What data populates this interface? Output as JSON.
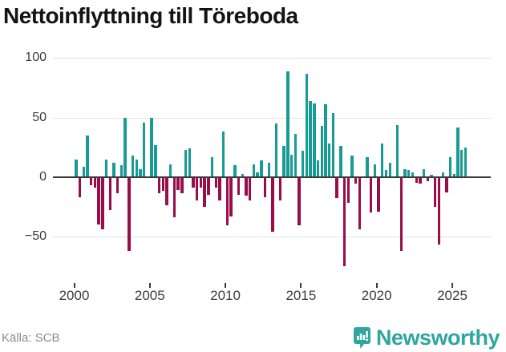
{
  "title": "Nettoinflyttning till Töreboda",
  "source_label": "Källa: SCB",
  "brand": {
    "name": "Newsworthy",
    "color": "#2ea79e",
    "badge_icon": "bar-chart-exclamation"
  },
  "colors": {
    "positive_bar": "#189b93",
    "negative_bar": "#9b0c4b",
    "zero_line": "#3b3b3b",
    "gridline": "#e4e4e4",
    "axis_text": "#3d3d3d",
    "title_text": "#141414",
    "source_text": "#8c8c8c"
  },
  "chart_data": {
    "type": "bar",
    "title": "Nettoinflyttning till Töreboda",
    "xlabel": "",
    "ylabel": "",
    "frequency": "quarterly",
    "start_period": "2000Q1",
    "end_period": "2025Q4",
    "values": [
      15,
      -16,
      9,
      35,
      -6,
      -8,
      -39,
      -43,
      15,
      -27,
      12,
      -13,
      10,
      50,
      -61,
      18,
      15,
      7,
      46,
      0,
      50,
      27,
      -13,
      -11,
      -23,
      11,
      -33,
      -10,
      -13,
      23,
      24,
      -8,
      -19,
      -8,
      -24,
      -14,
      17,
      -8,
      -19,
      38,
      -40,
      -32,
      10,
      -14,
      3,
      -15,
      -19,
      11,
      4,
      14,
      -16,
      12,
      -45,
      45,
      -19,
      26,
      89,
      19,
      36,
      -40,
      22,
      87,
      64,
      62,
      14,
      43,
      61,
      28,
      54,
      -17,
      26,
      -74,
      -21,
      18,
      -5,
      -43,
      0,
      17,
      -29,
      11,
      -28,
      28,
      6,
      12,
      0,
      44,
      -61,
      7,
      6,
      4,
      -4,
      -5,
      7,
      -3,
      2,
      -24,
      -56,
      4,
      -12,
      17,
      3,
      42,
      23,
      25
    ],
    "yAxis": {
      "tick_values": [
        100,
        50,
        0,
        -50
      ],
      "range": [
        -80,
        110
      ]
    },
    "xAxis": {
      "tick_years": [
        2000,
        2005,
        2010,
        2015,
        2020,
        2025
      ]
    },
    "grid": true,
    "legend": "none"
  }
}
